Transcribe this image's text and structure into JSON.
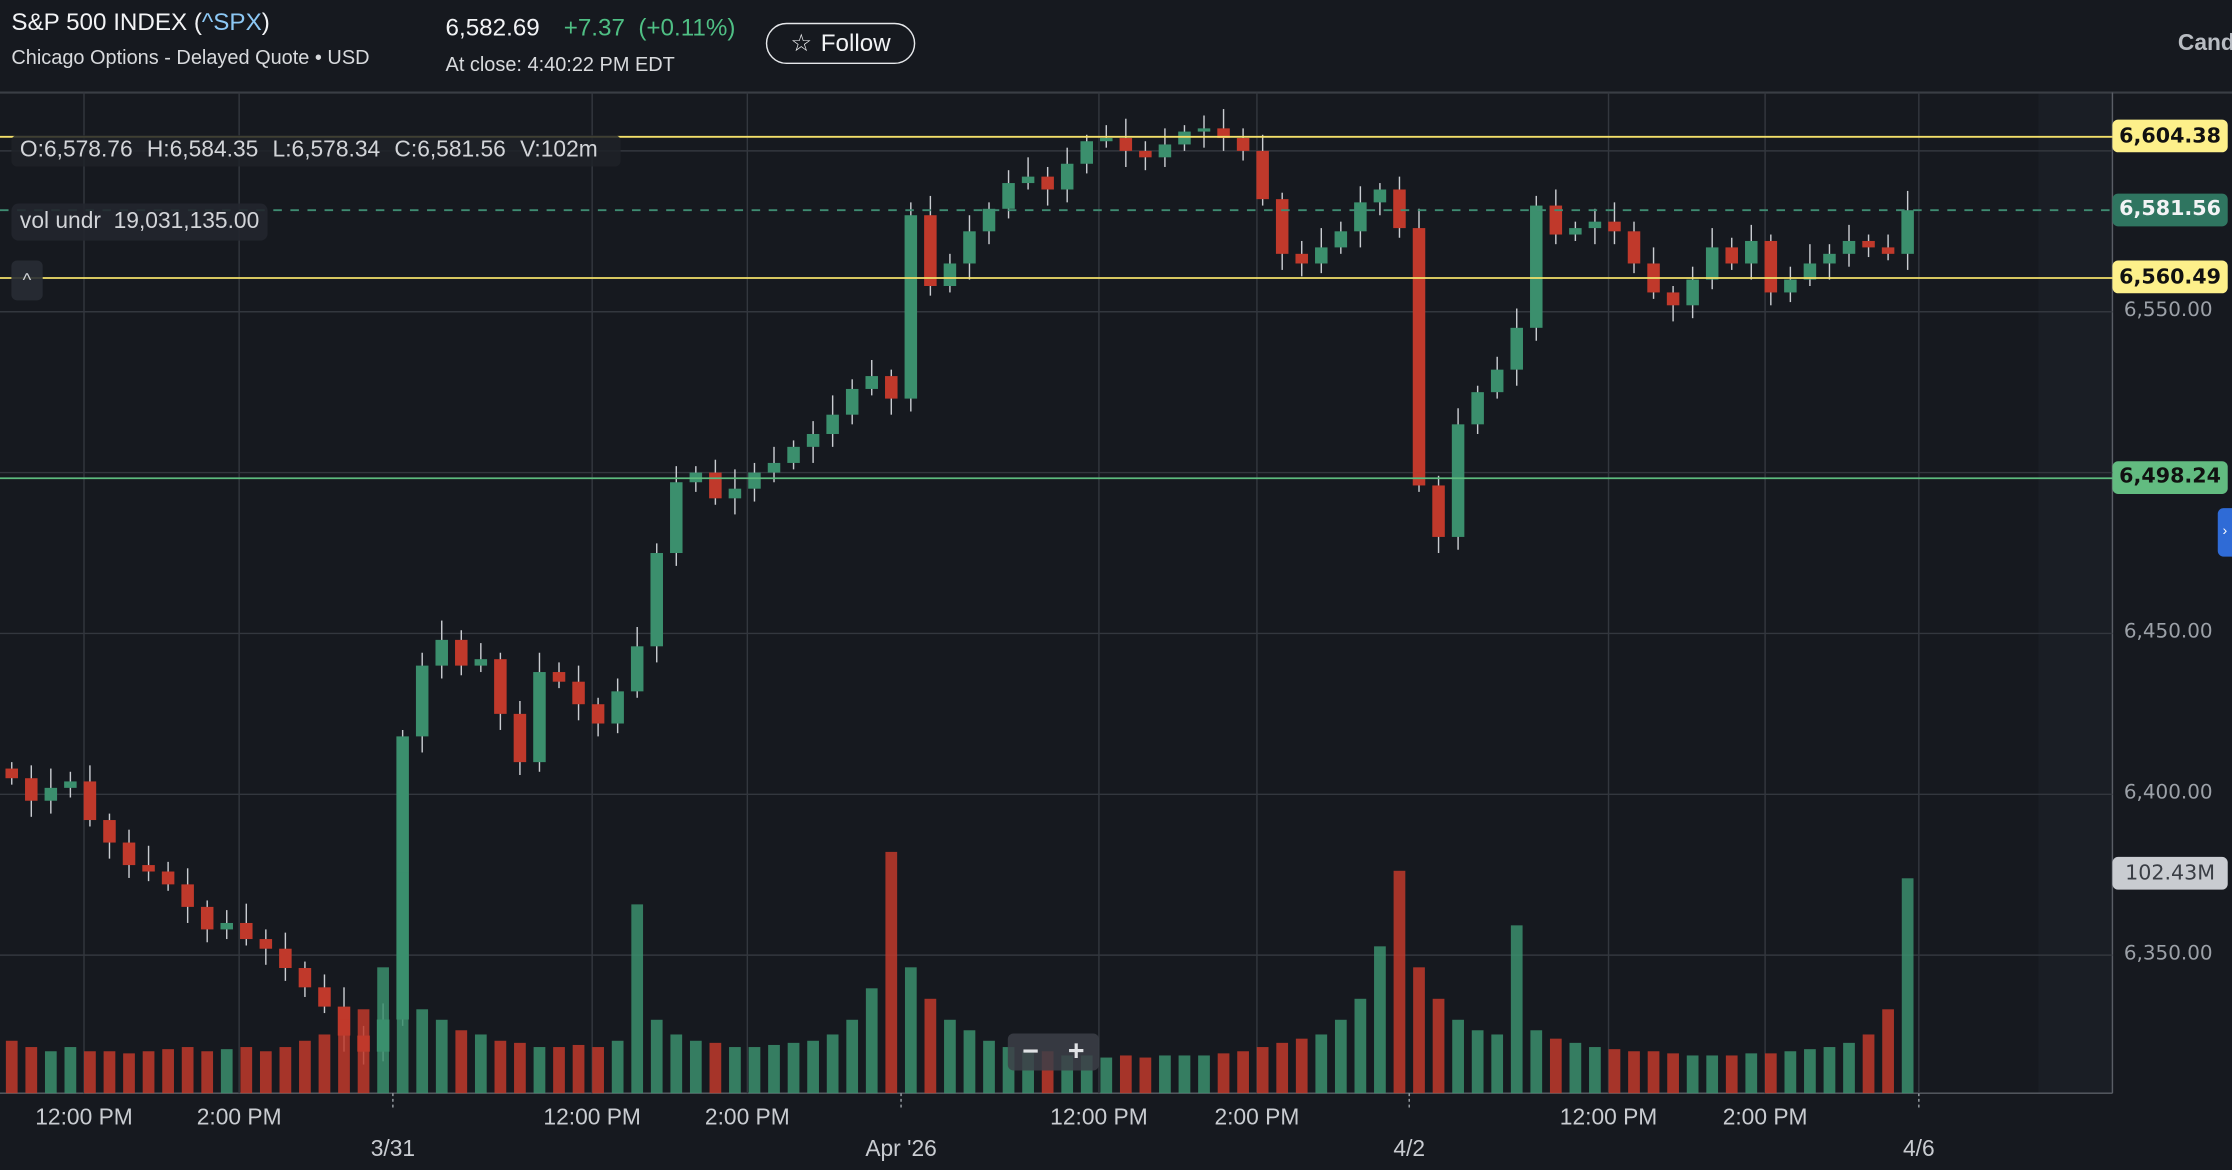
{
  "header": {
    "name": "S&P 500 INDEX (",
    "symbol": "^SPX",
    "name_end": ")",
    "subtitle": "Chicago Options - Delayed Quote • USD",
    "price": "6,582.69",
    "change": "+7.37  (+0.11%)",
    "close_time": "At close: 4:40:22 PM EDT",
    "follow_label": "Follow",
    "chart_type_label": "Candle"
  },
  "legend": {
    "open": "O:6,578.76",
    "high": "H:6,584.35",
    "low": "L:6,578.34",
    "close": "C:6,581.56",
    "volume": "V:102m",
    "indicator": "vol undr  19,031,135.00",
    "collapse_icon": "^"
  },
  "zoom_controls": {
    "minus": "−",
    "plus": "+"
  },
  "colors": {
    "up": "#3b8f6d",
    "down": "#c0392b",
    "background": "#16191f",
    "hline_yellow": "#f3e06a",
    "hline_green": "#5dbb7e",
    "last_price": "#2f7560"
  },
  "chart_data": {
    "type": "candlestick",
    "ylim": [
      6300,
      6630
    ],
    "y_ticks": [
      {
        "value": 6550,
        "label": "6,550.00"
      },
      {
        "value": 6450,
        "label": "6,450.00"
      },
      {
        "value": 6400,
        "label": "6,400.00"
      },
      {
        "value": 6350,
        "label": "6,350.00"
      }
    ],
    "price_lines": [
      {
        "value": 6604.38,
        "label": "6,604.38",
        "style": "yellow"
      },
      {
        "value": 6581.56,
        "label": "6,581.56",
        "style": "last"
      },
      {
        "value": 6560.49,
        "label": "6,560.49",
        "style": "yellow"
      },
      {
        "value": 6498.24,
        "label": "6,498.24",
        "style": "green"
      }
    ],
    "volume_label": "102.43M",
    "x_labels_time": [
      "12:00 PM",
      "2:00 PM",
      "12:00 PM",
      "2:00 PM",
      "12:00 PM",
      "2:00 PM",
      "12:00 PM",
      "2:00 PM"
    ],
    "x_labels_date": [
      "3/31",
      "Apr '26",
      "4/2",
      "4/6"
    ],
    "bar_interval": "15 min",
    "sessions": [
      {
        "closes": [
          6405,
          6398,
          6402,
          6404,
          6392,
          6385,
          6378,
          6376,
          6372,
          6365,
          6358,
          6360,
          6355,
          6352,
          6346,
          6340,
          6334,
          6325,
          6320,
          6330
        ],
        "volumes_m": [
          25,
          22,
          20,
          22,
          20,
          20,
          19,
          20,
          21,
          22,
          20,
          21,
          22,
          20,
          22,
          25,
          28,
          35,
          40,
          60
        ]
      },
      {
        "closes": [
          6418,
          6440,
          6448,
          6440,
          6442,
          6425,
          6410,
          6438,
          6435,
          6428,
          6422,
          6432,
          6446,
          6475,
          6497,
          6500,
          6492,
          6495,
          6500,
          6503,
          6508,
          6512,
          6518,
          6526,
          6530,
          6523
        ],
        "volumes_m": [
          105,
          40,
          35,
          30,
          28,
          25,
          24,
          22,
          22,
          23,
          22,
          25,
          90,
          35,
          28,
          25,
          24,
          22,
          22,
          23,
          24,
          25,
          28,
          35,
          50,
          115
        ]
      },
      {
        "closes": [
          6580,
          6558,
          6565,
          6575,
          6582,
          6590,
          6592,
          6588,
          6596,
          6603,
          6604,
          6600,
          6598,
          6602,
          6606,
          6607,
          6604,
          6600,
          6585,
          6568,
          6565,
          6570,
          6575,
          6584,
          6588,
          6576
        ],
        "volumes_m": [
          60,
          45,
          35,
          30,
          25,
          22,
          20,
          20,
          18,
          18,
          17,
          18,
          17,
          18,
          18,
          18,
          19,
          20,
          22,
          24,
          26,
          28,
          35,
          45,
          70,
          106
        ]
      },
      {
        "closes": [
          6496,
          6480,
          6515,
          6525,
          6532,
          6545,
          6583,
          6574,
          6576,
          6578,
          6575,
          6565,
          6556,
          6552,
          6560,
          6570,
          6565,
          6572,
          6556,
          6560,
          6565,
          6568,
          6572,
          6570,
          6568,
          6581.56
        ],
        "volumes_m": [
          60,
          45,
          35,
          30,
          28,
          80,
          30,
          26,
          24,
          22,
          21,
          20,
          20,
          19,
          18,
          18,
          18,
          19,
          19,
          20,
          21,
          22,
          24,
          28,
          40,
          102.43
        ]
      }
    ]
  }
}
